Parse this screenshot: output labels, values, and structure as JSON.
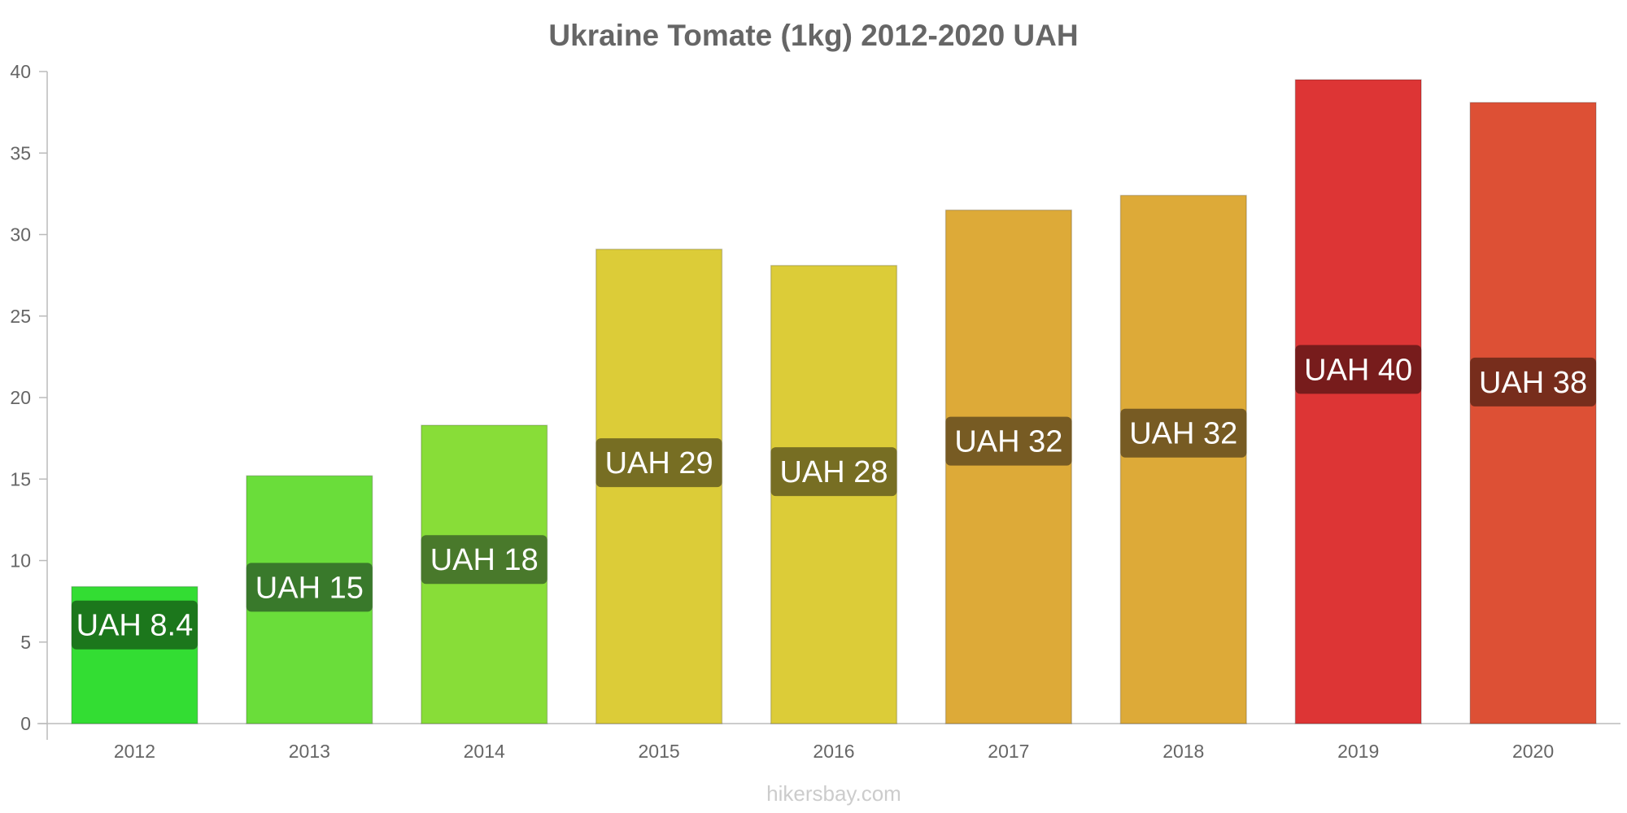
{
  "chart_data": {
    "type": "bar",
    "title": "Ukraine Tomate (1kg) 2012-2020 UAH",
    "xlabel": "",
    "ylabel": "",
    "ylim": [
      0,
      40
    ],
    "yticks": [
      "0",
      "5",
      "10",
      "15",
      "20",
      "25",
      "30",
      "35",
      "40"
    ],
    "grid": false,
    "legend": "none",
    "categories": [
      "2012",
      "2013",
      "2014",
      "2015",
      "2016",
      "2017",
      "2018",
      "2019",
      "2020"
    ],
    "values": [
      8.4,
      15.2,
      18.3,
      29.1,
      28.1,
      31.5,
      32.4,
      39.5,
      38.1
    ],
    "data_labels": [
      "UAH 8.4",
      "UAH 15",
      "UAH 18",
      "UAH 29",
      "UAH 28",
      "UAH 32",
      "UAH 32",
      "UAH 40",
      "UAH 38"
    ],
    "bar_colors": [
      "#33dd33",
      "#6add3a",
      "#88dd38",
      "#dccc38",
      "#dccc38",
      "#ddaa38",
      "#ddaa38",
      "#dd3535",
      "#dd5035"
    ],
    "label_colors": [
      "#1a6e1a",
      "#35702a",
      "#43702a",
      "#6e6622",
      "#6e6622",
      "#6e5522",
      "#6e5522",
      "#6e1a1a",
      "#6e2a1a"
    ]
  },
  "watermark": "hikersbay.com"
}
